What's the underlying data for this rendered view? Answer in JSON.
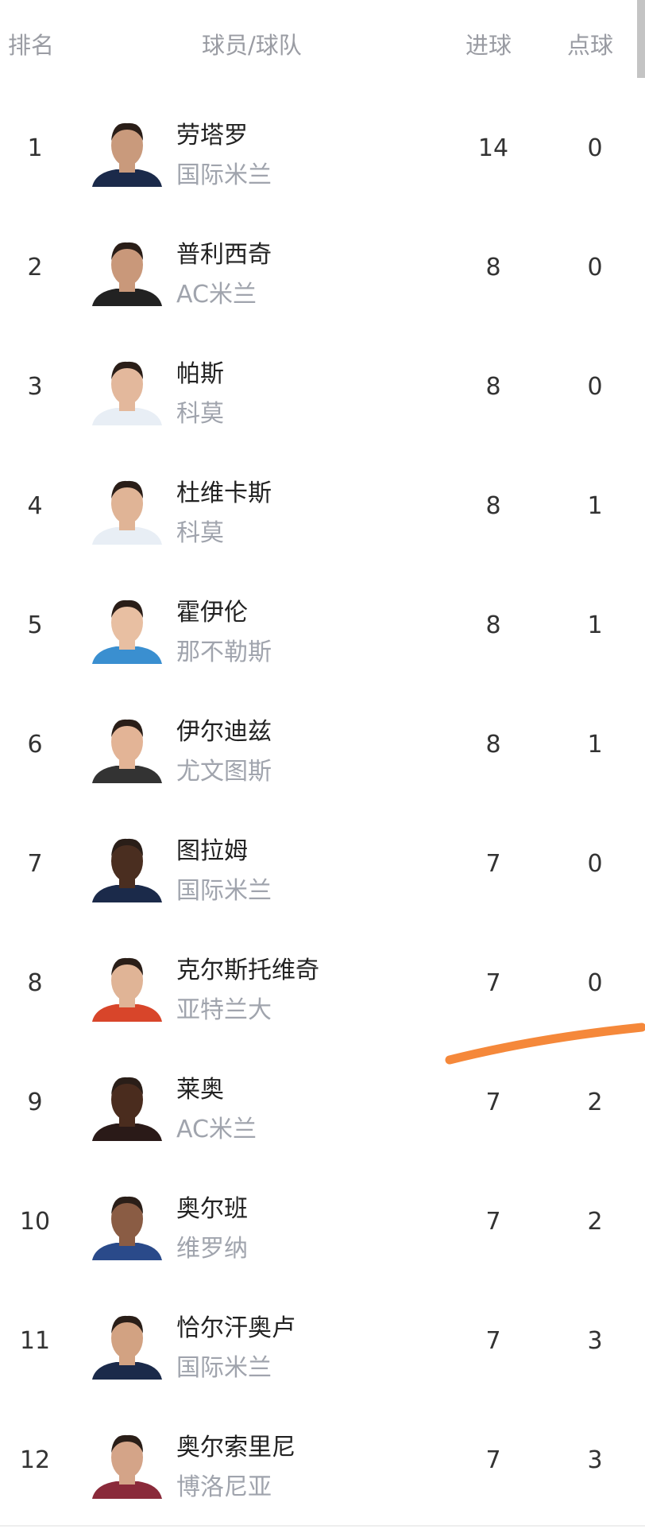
{
  "header": {
    "rank": "排名",
    "player_team": "球员/球队",
    "goals": "进球",
    "penalties": "点球"
  },
  "accent_mark_color": "#f5883a",
  "rows": [
    {
      "rank": "1",
      "name": "劳塔罗",
      "team": "国际米兰",
      "goals": "14",
      "penalties": "0",
      "skin": "#c99a7c",
      "jersey": "#1b2a4a"
    },
    {
      "rank": "2",
      "name": "普利西奇",
      "team": "AC米兰",
      "goals": "8",
      "penalties": "0",
      "skin": "#c9987a",
      "jersey": "#222"
    },
    {
      "rank": "3",
      "name": "帕斯",
      "team": "科莫",
      "goals": "8",
      "penalties": "0",
      "skin": "#e3b89c",
      "jersey": "#e8eef5"
    },
    {
      "rank": "4",
      "name": "杜维卡斯",
      "team": "科莫",
      "goals": "8",
      "penalties": "1",
      "skin": "#e0b496",
      "jersey": "#e8eef5"
    },
    {
      "rank": "5",
      "name": "霍伊伦",
      "team": "那不勒斯",
      "goals": "8",
      "penalties": "1",
      "skin": "#e8bfa2",
      "jersey": "#3a8fd0"
    },
    {
      "rank": "6",
      "name": "伊尔迪兹",
      "team": "尤文图斯",
      "goals": "8",
      "penalties": "1",
      "skin": "#e3b496",
      "jersey": "#333"
    },
    {
      "rank": "7",
      "name": "图拉姆",
      "team": "国际米兰",
      "goals": "7",
      "penalties": "0",
      "skin": "#4a2e20",
      "jersey": "#1b2a4a"
    },
    {
      "rank": "8",
      "name": "克尔斯托维奇",
      "team": "亚特兰大",
      "goals": "7",
      "penalties": "0",
      "skin": "#e0b496",
      "jersey": "#d8452a"
    },
    {
      "rank": "9",
      "name": "莱奥",
      "team": "AC米兰",
      "goals": "7",
      "penalties": "2",
      "skin": "#4a2c1e",
      "jersey": "#2a1a18"
    },
    {
      "rank": "10",
      "name": "奥尔班",
      "team": "维罗纳",
      "goals": "7",
      "penalties": "2",
      "skin": "#8a5c44",
      "jersey": "#2a4a8a"
    },
    {
      "rank": "11",
      "name": "恰尔汗奥卢",
      "team": "国际米兰",
      "goals": "7",
      "penalties": "3",
      "skin": "#d2a282",
      "jersey": "#1b2a4a"
    },
    {
      "rank": "12",
      "name": "奥尔索里尼",
      "team": "博洛尼亚",
      "goals": "7",
      "penalties": "3",
      "skin": "#d4a488",
      "jersey": "#8a2a3a"
    }
  ]
}
